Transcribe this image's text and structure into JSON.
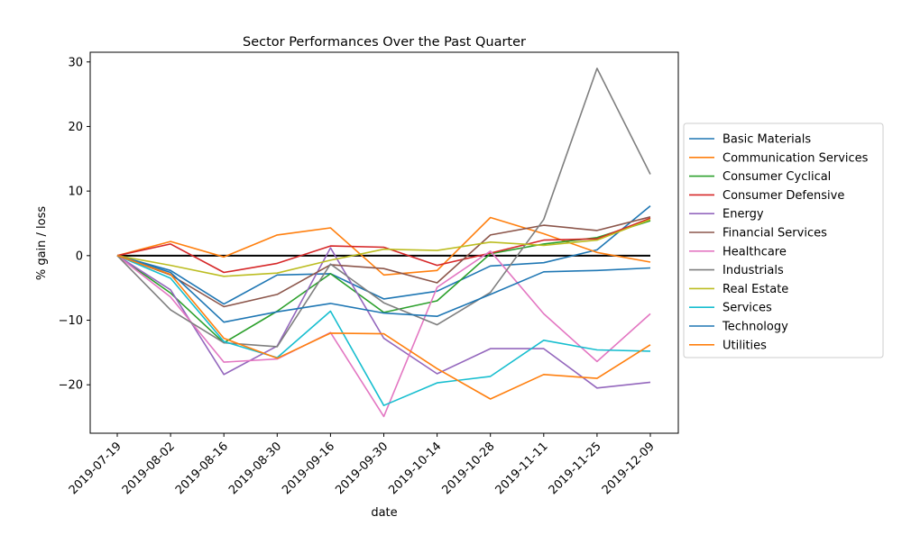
{
  "chart_data": {
    "type": "line",
    "title": "Sector Performances Over the Past Quarter",
    "xlabel": "date",
    "ylabel": "% gain / loss",
    "categories": [
      "2019-07-19",
      "2019-08-02",
      "2019-08-16",
      "2019-08-30",
      "2019-09-16",
      "2019-09-30",
      "2019-10-14",
      "2019-10-28",
      "2019-11-11",
      "2019-11-25",
      "2019-12-09"
    ],
    "yticks": [
      -20,
      -10,
      0,
      10,
      20,
      30
    ],
    "ylim": [
      -27.5,
      31.5
    ],
    "grid": false,
    "legend_position": "right",
    "zero_line": {
      "value": 0,
      "color": "#000000"
    },
    "series": [
      {
        "name": "Basic Materials",
        "color": "#1f77b4",
        "values": [
          0,
          -2.3,
          -7.5,
          -3.0,
          -2.8,
          -6.7,
          -5.5,
          -1.6,
          -1.1,
          0.9,
          7.7
        ]
      },
      {
        "name": "Communication Services",
        "color": "#ff7f0e",
        "values": [
          0,
          2.2,
          -0.2,
          3.2,
          4.3,
          -3.0,
          -2.3,
          5.9,
          3.4,
          0.5,
          -1.0
        ]
      },
      {
        "name": "Consumer Cyclical",
        "color": "#2ca02c",
        "values": [
          0,
          -5.8,
          -13.5,
          -8.6,
          -2.8,
          -8.8,
          -7.0,
          0.3,
          1.8,
          2.8,
          5.4
        ]
      },
      {
        "name": "Consumer Defensive",
        "color": "#d62728",
        "values": [
          0,
          1.8,
          -2.6,
          -1.2,
          1.5,
          1.3,
          -1.5,
          0.4,
          2.4,
          2.6,
          5.8
        ]
      },
      {
        "name": "Energy",
        "color": "#9467bd",
        "values": [
          0,
          -5.3,
          -18.4,
          -14.0,
          1.2,
          -12.8,
          -18.3,
          -14.4,
          -14.4,
          -20.5,
          -19.6
        ]
      },
      {
        "name": "Financial Services",
        "color": "#8c564b",
        "values": [
          0,
          -3.0,
          -7.9,
          -6.0,
          -1.4,
          -2.0,
          -4.2,
          3.2,
          4.7,
          3.9,
          6.0
        ]
      },
      {
        "name": "Healthcare",
        "color": "#e377c2",
        "values": [
          0,
          -6.4,
          -16.5,
          -16.0,
          -11.9,
          -24.9,
          -4.9,
          0.7,
          -9.0,
          -16.4,
          -9.0
        ]
      },
      {
        "name": "Industrials",
        "color": "#7f7f7f",
        "values": [
          0,
          -8.4,
          -13.5,
          -14.1,
          -1.3,
          -7.3,
          -10.7,
          -5.7,
          5.6,
          29.0,
          12.6
        ]
      },
      {
        "name": "Real Estate",
        "color": "#bcbd22",
        "values": [
          0,
          -1.5,
          -3.2,
          -2.7,
          -0.7,
          1.0,
          0.8,
          2.1,
          1.6,
          2.4,
          5.6
        ]
      },
      {
        "name": "Services",
        "color": "#17becf",
        "values": [
          0,
          -3.5,
          -13.3,
          -15.8,
          -8.6,
          -23.2,
          -19.7,
          -18.7,
          -13.1,
          -14.6,
          -14.8
        ]
      },
      {
        "name": "Technology",
        "color": "#1f77b4",
        "values": [
          0,
          -2.6,
          -10.3,
          -8.7,
          -7.4,
          -8.9,
          -9.4,
          -6.0,
          -2.5,
          -2.3,
          -1.9
        ]
      },
      {
        "name": "Utilities",
        "color": "#ff7f0e",
        "values": [
          0,
          -2.9,
          -12.8,
          -15.9,
          -12.0,
          -12.1,
          -17.5,
          -22.2,
          -18.4,
          -19.0,
          -13.8
        ]
      }
    ]
  }
}
